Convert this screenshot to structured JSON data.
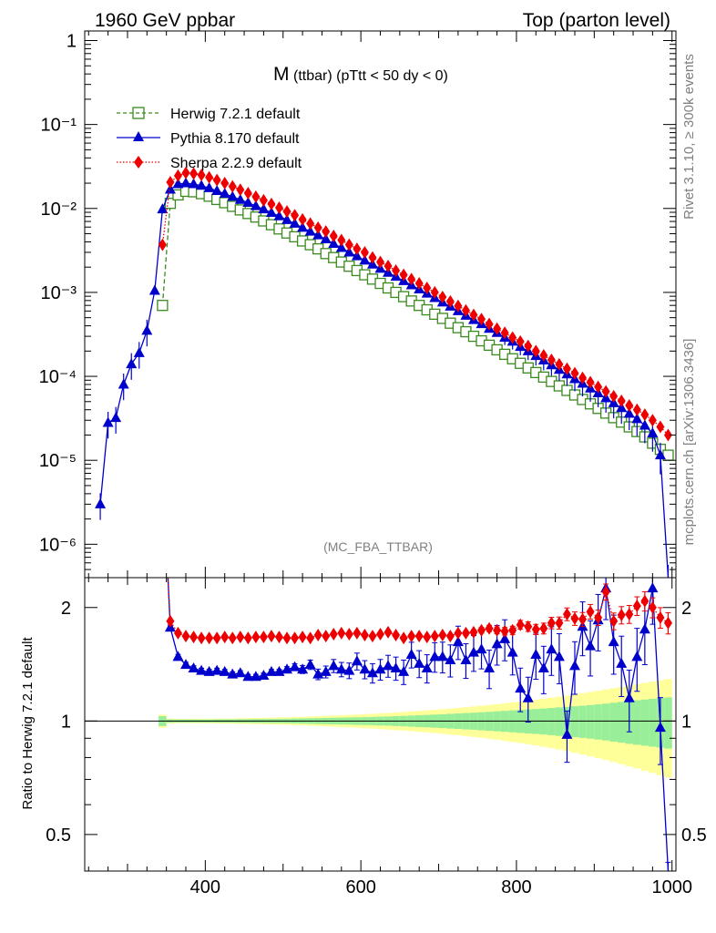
{
  "header": {
    "left": "1960 GeV ppbar",
    "right": "Top (parton level)"
  },
  "side": {
    "rivet": "Rivet 3.1.10, ≥ 300k events",
    "mcplots": "mcplots.cern.ch [arXiv:1306.3436]"
  },
  "chart_data": {
    "type": "line",
    "title_main": "M",
    "title_sub": "(ttbar) (pTtt < 50 dy < 0)",
    "watermark": "(MC_FBA_TTBAR)",
    "xlabel": "",
    "ylabel_top": "",
    "ylabel_ratio": "Ratio to Herwig 7.2.1 default",
    "xlim": [
      245,
      1005
    ],
    "ylim_top": [
      4e-07,
      1.3
    ],
    "ylim_ratio": [
      0.4,
      2.4
    ],
    "x_ticks": [
      400,
      600,
      800,
      1000
    ],
    "y_ticks_top": [
      {
        "v": 1,
        "t": "1"
      },
      {
        "v": 0.1,
        "t": "10⁻¹"
      },
      {
        "v": 0.01,
        "t": "10⁻²"
      },
      {
        "v": 0.001,
        "t": "10⁻³"
      },
      {
        "v": 0.0001,
        "t": "10⁻⁴"
      },
      {
        "v": 1e-05,
        "t": "10⁻⁵"
      },
      {
        "v": 1e-06,
        "t": "10⁻⁶"
      }
    ],
    "y_ticks_ratio": [
      {
        "v": 2,
        "t": "2"
      },
      {
        "v": 1,
        "t": "1"
      },
      {
        "v": 0.5,
        "t": "0.5"
      }
    ],
    "legend_position": "top-left",
    "series": [
      {
        "name": "Herwig 7.2.1 default",
        "color": "#3a8a1e",
        "marker": "open-square",
        "line": "dashed",
        "x": [
          345,
          355,
          365,
          375,
          385,
          395,
          405,
          415,
          425,
          435,
          445,
          455,
          465,
          475,
          485,
          495,
          505,
          515,
          525,
          535,
          545,
          555,
          565,
          575,
          585,
          595,
          605,
          615,
          625,
          635,
          645,
          655,
          665,
          675,
          685,
          695,
          705,
          715,
          725,
          735,
          745,
          755,
          765,
          775,
          785,
          795,
          805,
          815,
          825,
          835,
          845,
          855,
          865,
          875,
          885,
          895,
          905,
          915,
          925,
          935,
          945,
          955,
          965,
          975,
          985,
          995
        ],
        "y": [
          0.0007,
          0.0115,
          0.0145,
          0.016,
          0.0158,
          0.015,
          0.014,
          0.0128,
          0.0117,
          0.0106,
          0.0096,
          0.0087,
          0.0079,
          0.0071,
          0.0064,
          0.0057,
          0.0051,
          0.0046,
          0.0041,
          0.0037,
          0.0033,
          0.0029,
          0.0026,
          0.0023,
          0.00205,
          0.00182,
          0.00162,
          0.00144,
          0.00128,
          0.00113,
          0.001,
          0.00089,
          0.00079,
          0.0007,
          0.00062,
          0.00055,
          0.00049,
          0.00043,
          0.00038,
          0.00034,
          0.0003,
          0.000265,
          0.000235,
          0.000207,
          0.000183,
          0.000162,
          0.000143,
          0.000126,
          0.000111,
          9.8e-05,
          8.7e-05,
          7.7e-05,
          6.8e-05,
          6e-05,
          5.3e-05,
          4.7e-05,
          4.15e-05,
          3.65e-05,
          3.22e-05,
          2.85e-05,
          2.5e-05,
          2.2e-05,
          1.9e-05,
          1.6e-05,
          1.35e-05,
          1.15e-05
        ]
      },
      {
        "name": "Pythia 8.170 default",
        "color": "#0000cc",
        "marker": "filled-triangle",
        "line": "solid",
        "x": [
          265,
          275,
          285,
          295,
          305,
          315,
          325,
          335,
          345,
          355,
          365,
          375,
          385,
          395,
          405,
          415,
          425,
          435,
          445,
          455,
          465,
          475,
          485,
          495,
          505,
          515,
          525,
          535,
          545,
          555,
          565,
          575,
          585,
          595,
          605,
          615,
          625,
          635,
          645,
          655,
          665,
          675,
          685,
          695,
          705,
          715,
          725,
          735,
          745,
          755,
          765,
          775,
          785,
          795,
          805,
          815,
          825,
          835,
          845,
          855,
          865,
          875,
          885,
          895,
          905,
          915,
          925,
          935,
          945,
          955,
          965,
          975,
          985,
          995
        ],
        "y": [
          3e-06,
          2.8e-05,
          3.2e-05,
          8e-05,
          0.00014,
          0.00019,
          0.00035,
          0.00105,
          0.0098,
          0.0168,
          0.0195,
          0.02,
          0.0195,
          0.0187,
          0.0175,
          0.0162,
          0.015,
          0.0138,
          0.0127,
          0.0117,
          0.0107,
          0.0098,
          0.0089,
          0.0081,
          0.0073,
          0.0066,
          0.0059,
          0.0053,
          0.0048,
          0.0043,
          0.0038,
          0.0034,
          0.003,
          0.0027,
          0.0024,
          0.00215,
          0.00192,
          0.00172,
          0.00154,
          0.00137,
          0.00122,
          0.00109,
          0.00097,
          0.00086,
          0.00076,
          0.00068,
          0.0006,
          0.00053,
          0.00047,
          0.00042,
          0.00037,
          0.00033,
          0.00029,
          0.00026,
          0.000225,
          0.0002,
          0.000175,
          0.000155,
          0.000136,
          0.00012,
          0.000106,
          9.3e-05,
          8.2e-05,
          7.2e-05,
          6.3e-05,
          5.5e-05,
          4.8e-05,
          4.2e-05,
          3.6e-05,
          3.1e-05,
          2.6e-05,
          2.1e-05,
          1.15e-05,
          4e-07
        ]
      },
      {
        "name": "Sherpa 2.2.9 default",
        "color": "#ee0000",
        "marker": "filled-diamond",
        "line": "dotted",
        "x": [
          345,
          355,
          365,
          375,
          385,
          395,
          405,
          415,
          425,
          435,
          445,
          455,
          465,
          475,
          485,
          495,
          505,
          515,
          525,
          535,
          545,
          555,
          565,
          575,
          585,
          595,
          605,
          615,
          625,
          635,
          645,
          655,
          665,
          675,
          685,
          695,
          705,
          715,
          725,
          735,
          745,
          755,
          765,
          775,
          785,
          795,
          805,
          815,
          825,
          835,
          845,
          855,
          865,
          875,
          885,
          895,
          905,
          915,
          925,
          935,
          945,
          955,
          965,
          975,
          985,
          995
        ],
        "y": [
          0.0037,
          0.0205,
          0.0245,
          0.0265,
          0.026,
          0.025,
          0.0235,
          0.0218,
          0.02,
          0.0183,
          0.0167,
          0.0152,
          0.0138,
          0.0125,
          0.0113,
          0.0102,
          0.0092,
          0.0083,
          0.0074,
          0.0066,
          0.0059,
          0.0053,
          0.0047,
          0.0042,
          0.0037,
          0.0033,
          0.003,
          0.0026,
          0.0023,
          0.00206,
          0.00182,
          0.00162,
          0.00144,
          0.00128,
          0.00113,
          0.001,
          0.00088,
          0.00078,
          0.00069,
          0.00061,
          0.00054,
          0.00048,
          0.00042,
          0.00037,
          0.00033,
          0.00029,
          0.00026,
          0.00023,
          0.0002,
          0.000178,
          0.000157,
          0.000139,
          0.000123,
          0.000109,
          9.6e-05,
          8.5e-05,
          7.5e-05,
          6.6e-05,
          5.8e-05,
          5.1e-05,
          4.5e-05,
          4e-05,
          3.5e-05,
          3e-05,
          2.5e-05,
          2e-05
        ]
      }
    ],
    "ratio": [
      {
        "name": "Pythia 8.170 default",
        "x": [
          355,
          365,
          375,
          385,
          395,
          405,
          415,
          425,
          435,
          445,
          455,
          465,
          475,
          485,
          495,
          505,
          515,
          525,
          535,
          545,
          555,
          565,
          575,
          585,
          595,
          605,
          615,
          625,
          635,
          645,
          655,
          665,
          675,
          685,
          695,
          705,
          715,
          725,
          735,
          745,
          755,
          765,
          775,
          785,
          795,
          805,
          815,
          825,
          835,
          845,
          855,
          865,
          875,
          885,
          895,
          905,
          915,
          925,
          935,
          945,
          955,
          965,
          975,
          985,
          995
        ],
        "y": [
          1.77,
          1.48,
          1.41,
          1.38,
          1.36,
          1.35,
          1.36,
          1.35,
          1.33,
          1.34,
          1.31,
          1.31,
          1.32,
          1.35,
          1.35,
          1.37,
          1.39,
          1.37,
          1.41,
          1.33,
          1.35,
          1.4,
          1.37,
          1.36,
          1.44,
          1.37,
          1.34,
          1.37,
          1.4,
          1.38,
          1.35,
          1.5,
          1.42,
          1.38,
          1.48,
          1.48,
          1.45,
          1.62,
          1.45,
          1.52,
          1.55,
          1.38,
          1.6,
          1.65,
          1.52,
          1.22,
          1.15,
          1.5,
          1.38,
          1.55,
          1.48,
          0.92,
          1.4,
          1.78,
          1.58,
          1.85,
          2.25,
          1.62,
          1.42,
          1.15,
          1.48,
          1.75,
          2.25,
          0.96,
          0.35
        ]
      },
      {
        "name": "Sherpa 2.2.9 default",
        "x": [
          355,
          365,
          375,
          385,
          395,
          405,
          415,
          425,
          435,
          445,
          455,
          465,
          475,
          485,
          495,
          505,
          515,
          525,
          535,
          545,
          555,
          565,
          575,
          585,
          595,
          605,
          615,
          625,
          635,
          645,
          655,
          665,
          675,
          685,
          695,
          705,
          715,
          725,
          735,
          745,
          755,
          765,
          775,
          785,
          795,
          805,
          815,
          825,
          835,
          845,
          855,
          865,
          875,
          885,
          895,
          905,
          915,
          925,
          935,
          945,
          955,
          965,
          975,
          985,
          995
        ],
        "y": [
          1.84,
          1.71,
          1.68,
          1.67,
          1.66,
          1.66,
          1.66,
          1.67,
          1.66,
          1.67,
          1.66,
          1.67,
          1.67,
          1.68,
          1.67,
          1.66,
          1.66,
          1.67,
          1.66,
          1.69,
          1.68,
          1.7,
          1.71,
          1.7,
          1.71,
          1.69,
          1.68,
          1.7,
          1.72,
          1.69,
          1.66,
          1.68,
          1.68,
          1.67,
          1.68,
          1.69,
          1.68,
          1.71,
          1.71,
          1.72,
          1.74,
          1.76,
          1.74,
          1.73,
          1.74,
          1.8,
          1.78,
          1.75,
          1.76,
          1.82,
          1.82,
          1.92,
          1.87,
          1.86,
          1.95,
          1.88,
          2.2,
          1.84,
          1.91,
          1.92,
          2.02,
          2.08,
          2.0,
          1.88,
          1.82
        ]
      }
    ],
    "ratio_band": {
      "name": "Herwig 7.2.1 default",
      "x": [
        345,
        355,
        365,
        375,
        385,
        395,
        405,
        415,
        425,
        435,
        445,
        455,
        465,
        475,
        485,
        495,
        505,
        515,
        525,
        535,
        545,
        555,
        565,
        575,
        585,
        595,
        605,
        615,
        625,
        635,
        645,
        655,
        665,
        675,
        685,
        695,
        705,
        715,
        725,
        735,
        745,
        755,
        765,
        775,
        785,
        795,
        805,
        815,
        825,
        835,
        845,
        855,
        865,
        875,
        885,
        895,
        905,
        915,
        925,
        935,
        945,
        955,
        965,
        975,
        985,
        995
      ],
      "stat": [
        0.03,
        0.01,
        0.009,
        0.009,
        0.009,
        0.009,
        0.009,
        0.01,
        0.01,
        0.01,
        0.011,
        0.011,
        0.012,
        0.012,
        0.013,
        0.013,
        0.014,
        0.015,
        0.016,
        0.017,
        0.018,
        0.019,
        0.02,
        0.021,
        0.022,
        0.023,
        0.024,
        0.025,
        0.027,
        0.028,
        0.03,
        0.032,
        0.034,
        0.036,
        0.038,
        0.04,
        0.042,
        0.045,
        0.047,
        0.05,
        0.052,
        0.055,
        0.058,
        0.061,
        0.064,
        0.067,
        0.07,
        0.073,
        0.076,
        0.079,
        0.083,
        0.087,
        0.09,
        0.094,
        0.098,
        0.102,
        0.107,
        0.112,
        0.118,
        0.124,
        0.13,
        0.135,
        0.14,
        0.145,
        0.15,
        0.155
      ],
      "total": [
        0.04,
        0.015,
        0.013,
        0.013,
        0.013,
        0.014,
        0.014,
        0.015,
        0.015,
        0.016,
        0.017,
        0.018,
        0.019,
        0.02,
        0.021,
        0.022,
        0.023,
        0.025,
        0.026,
        0.028,
        0.03,
        0.032,
        0.034,
        0.036,
        0.038,
        0.04,
        0.043,
        0.045,
        0.048,
        0.051,
        0.054,
        0.057,
        0.06,
        0.064,
        0.067,
        0.071,
        0.075,
        0.079,
        0.083,
        0.088,
        0.093,
        0.098,
        0.103,
        0.108,
        0.114,
        0.12,
        0.126,
        0.132,
        0.139,
        0.146,
        0.153,
        0.16,
        0.168,
        0.176,
        0.185,
        0.194,
        0.203,
        0.212,
        0.222,
        0.232,
        0.242,
        0.252,
        0.262,
        0.272,
        0.282,
        0.292
      ]
    }
  }
}
